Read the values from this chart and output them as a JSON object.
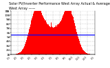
{
  "title_line1": "Solar PV/Inverter Performance West Array Actual & Average Power Output",
  "title_line2": "West Array ——",
  "bg_color": "#ffffff",
  "plot_bg": "#ffffff",
  "bar_color": "#ff0000",
  "avg_line_color": "#0000ff",
  "avg_line_y": 0.45,
  "grid_color": "#888888",
  "text_color": "#000000",
  "title_fontsize": 3.5,
  "axis_fontsize": 2.8,
  "ylim": [
    0,
    1
  ],
  "num_bars": 365,
  "y_tick_labels_right": [
    "1k",
    "2k",
    "3k",
    "4k",
    "5k",
    "6k",
    "7k",
    "8k",
    "9k",
    "10k",
    "11k"
  ],
  "y_tick_labels_left": [
    "0",
    "1",
    "2",
    "3",
    "4",
    "5",
    "6",
    "7",
    "8",
    "9",
    "10"
  ]
}
